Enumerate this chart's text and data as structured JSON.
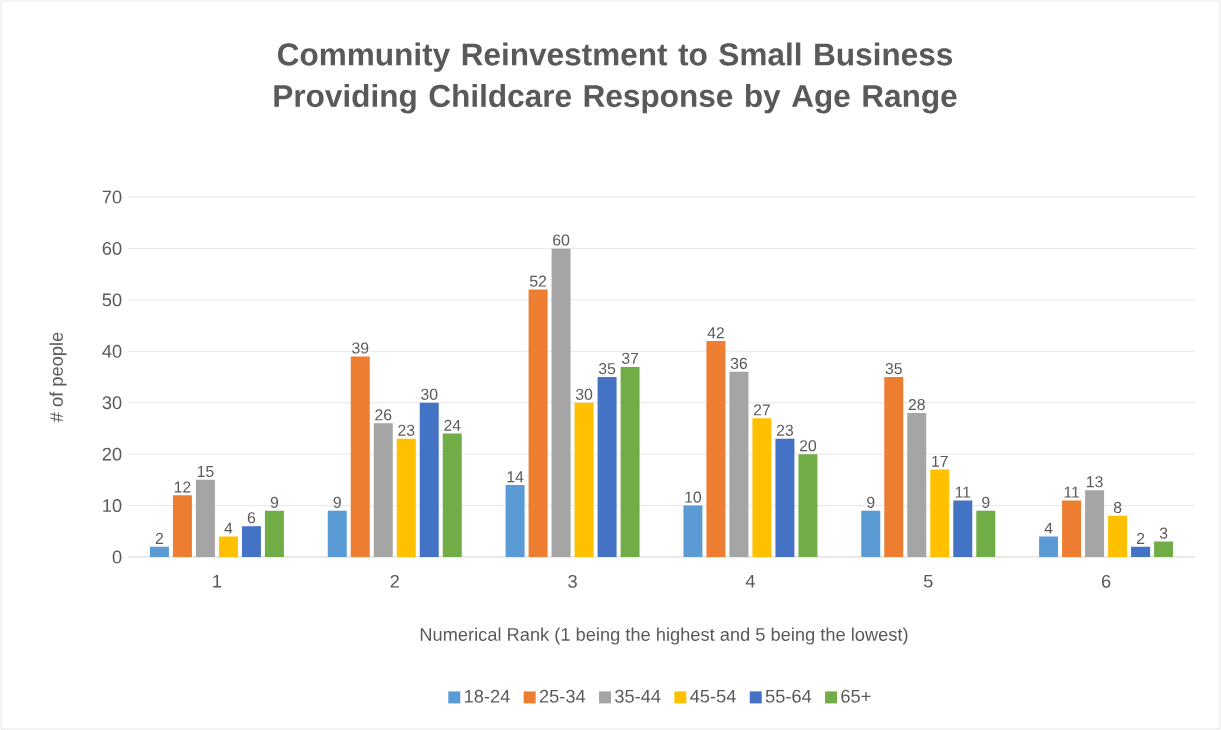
{
  "chart_data": {
    "type": "bar",
    "title": "Community Reinvestment to Small Business Providing Childcare Response by Age Range",
    "xlabel": "Numerical Rank (1 being the highest and 5 being the lowest)",
    "ylabel": "# of people",
    "categories": [
      "1",
      "2",
      "3",
      "4",
      "5",
      "6"
    ],
    "series": [
      {
        "name": "18-24",
        "color": "#5b9bd5",
        "values": [
          2,
          9,
          14,
          10,
          9,
          4
        ]
      },
      {
        "name": "25-34",
        "color": "#ed7d31",
        "values": [
          12,
          39,
          52,
          42,
          35,
          11
        ]
      },
      {
        "name": "35-44",
        "color": "#a5a5a5",
        "values": [
          15,
          26,
          60,
          36,
          28,
          13
        ]
      },
      {
        "name": "45-54",
        "color": "#ffc000",
        "values": [
          4,
          23,
          30,
          27,
          17,
          8
        ]
      },
      {
        "name": "55-64",
        "color": "#4472c4",
        "values": [
          6,
          30,
          35,
          23,
          11,
          2
        ]
      },
      {
        "name": "65+",
        "color": "#70ad47",
        "values": [
          9,
          24,
          37,
          20,
          9,
          3
        ]
      }
    ],
    "ylim": [
      0,
      70
    ],
    "yticks": [
      0,
      10,
      20,
      30,
      40,
      50,
      60,
      70
    ],
    "grid": "y",
    "legend": "bottom",
    "data_labels": true
  }
}
